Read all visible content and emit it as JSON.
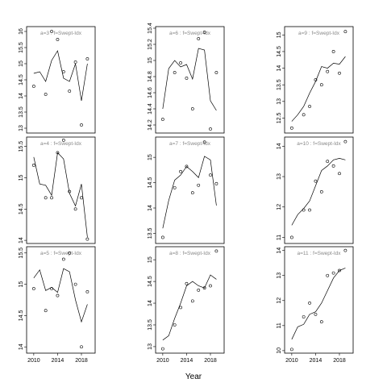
{
  "x_label": "Year",
  "chart_data": [
    {
      "type": "line",
      "title": "a=3 : f=Swept-Idx",
      "x": [
        2010,
        2011,
        2012,
        2013,
        2014,
        2015,
        2016,
        2017,
        2018,
        2019
      ],
      "xlim": [
        2008.8,
        2020.3
      ],
      "ylim": [
        12.85,
        16.15
      ],
      "yticks": [
        13.0,
        13.5,
        14.0,
        14.5,
        15.0,
        15.5,
        16.0
      ],
      "series": [
        {
          "style": "points",
          "color": "#000000",
          "values": [
            14.3,
            null,
            14.05,
            16.0,
            15.75,
            14.75,
            14.15,
            15.05,
            13.1,
            15.15
          ]
        },
        {
          "style": "line",
          "color": "#000000",
          "values": [
            14.7,
            14.75,
            14.45,
            15.1,
            15.4,
            14.55,
            14.45,
            15.0,
            13.85,
            15.0
          ]
        }
      ]
    },
    {
      "type": "line",
      "title": "a=6 : f=Swept-Idx",
      "x": [
        2010,
        2011,
        2012,
        2013,
        2014,
        2015,
        2016,
        2017,
        2018,
        2019
      ],
      "xlim": [
        2008.8,
        2020.3
      ],
      "ylim": [
        14.1,
        15.42
      ],
      "yticks": [
        14.2,
        14.4,
        14.6,
        14.8,
        15.0,
        15.2,
        15.4
      ],
      "series": [
        {
          "style": "points",
          "color": "#000000",
          "values": [
            14.27,
            null,
            14.85,
            14.97,
            14.78,
            14.4,
            15.27,
            15.35,
            14.15,
            14.85
          ]
        },
        {
          "style": "line",
          "color": "#000000",
          "values": [
            14.4,
            14.9,
            15.0,
            14.92,
            14.95,
            14.77,
            15.15,
            15.13,
            14.5,
            14.38
          ]
        }
      ]
    },
    {
      "type": "line",
      "title": "a=9 : f=Swept-Idx",
      "x": [
        2010,
        2011,
        2012,
        2013,
        2014,
        2015,
        2016,
        2017,
        2018,
        2019
      ],
      "xlim": [
        2008.8,
        2020.3
      ],
      "ylim": [
        12.05,
        15.25
      ],
      "yticks": [
        12.5,
        13.0,
        13.5,
        14.0,
        14.5,
        15.0
      ],
      "series": [
        {
          "style": "points",
          "color": "#000000",
          "values": [
            12.2,
            null,
            12.6,
            12.85,
            13.65,
            13.5,
            13.9,
            14.5,
            13.85,
            15.1
          ]
        },
        {
          "style": "line",
          "color": "#000000",
          "values": [
            12.4,
            12.6,
            12.85,
            13.25,
            13.6,
            14.05,
            14.0,
            14.15,
            14.12,
            14.35
          ]
        }
      ]
    },
    {
      "type": "line",
      "title": "a=4 : f=Swept-Idx",
      "x": [
        2010,
        2011,
        2012,
        2013,
        2014,
        2015,
        2016,
        2017,
        2018,
        2019
      ],
      "xlim": [
        2008.8,
        2020.3
      ],
      "ylim": [
        13.95,
        15.65
      ],
      "yticks": [
        14.0,
        14.5,
        15.0,
        15.5
      ],
      "series": [
        {
          "style": "points",
          "color": "#000000",
          "values": [
            15.2,
            null,
            14.68,
            14.68,
            15.4,
            15.6,
            14.78,
            14.5,
            14.68,
            14.02
          ]
        },
        {
          "style": "line",
          "color": "#000000",
          "values": [
            15.33,
            14.9,
            14.88,
            14.72,
            15.4,
            15.3,
            14.75,
            14.55,
            14.9,
            14.05
          ]
        }
      ]
    },
    {
      "type": "line",
      "title": "a=7 : f=Swept-Idx",
      "x": [
        2010,
        2011,
        2012,
        2013,
        2014,
        2015,
        2016,
        2017,
        2018,
        2019
      ],
      "xlim": [
        2008.8,
        2020.3
      ],
      "ylim": [
        13.3,
        15.4
      ],
      "yticks": [
        13.5,
        14.0,
        14.5,
        15.0
      ],
      "series": [
        {
          "style": "points",
          "color": "#000000",
          "values": [
            13.42,
            null,
            14.4,
            14.72,
            14.82,
            14.3,
            14.45,
            15.3,
            14.65,
            14.48
          ]
        },
        {
          "style": "line",
          "color": "#000000",
          "values": [
            13.6,
            14.15,
            14.55,
            14.65,
            14.82,
            14.72,
            14.6,
            15.02,
            14.95,
            14.05
          ]
        }
      ]
    },
    {
      "type": "line",
      "title": "a=10 : f=Swept-Idx",
      "x": [
        2010,
        2011,
        2012,
        2013,
        2014,
        2015,
        2016,
        2017,
        2018,
        2019
      ],
      "xlim": [
        2008.8,
        2020.3
      ],
      "ylim": [
        10.8,
        14.3
      ],
      "yticks": [
        11.0,
        12.0,
        13.0,
        14.0
      ],
      "series": [
        {
          "style": "points",
          "color": "#000000",
          "values": [
            11.0,
            null,
            11.9,
            11.9,
            12.85,
            12.5,
            13.5,
            13.35,
            13.1,
            14.15
          ]
        },
        {
          "style": "line",
          "color": "#000000",
          "values": [
            11.4,
            11.75,
            11.95,
            12.2,
            12.7,
            13.2,
            13.35,
            13.55,
            13.6,
            13.55
          ]
        }
      ]
    },
    {
      "type": "line",
      "title": "a=5 : f=Swept-Idx",
      "x": [
        2010,
        2011,
        2012,
        2013,
        2014,
        2015,
        2016,
        2017,
        2018,
        2019
      ],
      "xlim": [
        2008.8,
        2020.3
      ],
      "ylim": [
        13.9,
        15.6
      ],
      "yticks": [
        14.0,
        14.5,
        15.0,
        15.5
      ],
      "xticks": [
        2010,
        2014,
        2018
      ],
      "series": [
        {
          "style": "points",
          "color": "#000000",
          "values": [
            14.93,
            null,
            14.58,
            14.93,
            14.82,
            15.4,
            15.5,
            15.0,
            14.0,
            14.88
          ]
        },
        {
          "style": "line",
          "color": "#000000",
          "values": [
            15.1,
            15.23,
            14.9,
            14.95,
            14.87,
            15.25,
            15.2,
            14.75,
            14.4,
            14.68
          ]
        }
      ]
    },
    {
      "type": "line",
      "title": "a=8 : f=Swept-Idx",
      "x": [
        2010,
        2011,
        2012,
        2013,
        2014,
        2015,
        2016,
        2017,
        2018,
        2019
      ],
      "xlim": [
        2008.8,
        2020.3
      ],
      "ylim": [
        12.85,
        15.3
      ],
      "yticks": [
        13.0,
        13.5,
        14.0,
        14.5,
        15.0
      ],
      "xticks": [
        2010,
        2014,
        2018
      ],
      "series": [
        {
          "style": "points",
          "color": "#000000",
          "values": [
            12.95,
            null,
            13.5,
            13.9,
            14.45,
            14.05,
            14.3,
            14.35,
            14.4,
            15.2
          ]
        },
        {
          "style": "line",
          "color": "#000000",
          "values": [
            13.15,
            13.25,
            13.65,
            14.0,
            14.4,
            14.5,
            14.4,
            14.35,
            14.65,
            14.55
          ]
        }
      ]
    },
    {
      "type": "line",
      "title": "a=11 : f=Swept-Idx",
      "x": [
        2010,
        2011,
        2012,
        2013,
        2014,
        2015,
        2016,
        2017,
        2018,
        2019
      ],
      "xlim": [
        2008.8,
        2020.3
      ],
      "ylim": [
        9.9,
        14.15
      ],
      "yticks": [
        10,
        11,
        12,
        13,
        14
      ],
      "xticks": [
        2010,
        2014,
        2018
      ],
      "series": [
        {
          "style": "points",
          "color": "#000000",
          "values": [
            10.05,
            null,
            11.35,
            11.9,
            11.45,
            11.15,
            13.0,
            13.1,
            13.2,
            14.0
          ]
        },
        {
          "style": "line",
          "color": "#000000",
          "values": [
            10.45,
            10.95,
            11.05,
            11.45,
            11.55,
            11.9,
            12.4,
            12.9,
            13.2,
            13.3
          ]
        }
      ]
    }
  ]
}
